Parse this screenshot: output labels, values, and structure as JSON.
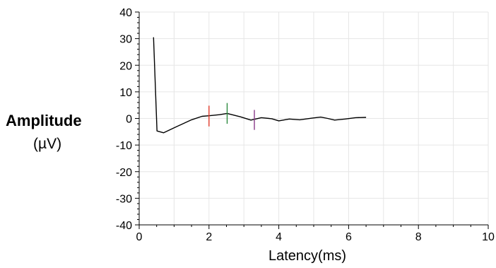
{
  "chart_data": {
    "type": "line",
    "title": "",
    "ylabel_title": "Amplitude",
    "ylabel_unit": "(µV)",
    "xlabel": "Latency(ms)",
    "xlim": [
      0,
      10
    ],
    "ylim": [
      -40,
      40
    ],
    "x_ticks": [
      "0",
      "2",
      "4",
      "6",
      "8",
      "10"
    ],
    "y_ticks": [
      "40",
      "30",
      "20",
      "10",
      "0",
      "-10",
      "-20",
      "-30",
      "-40"
    ],
    "grid": true,
    "series": [
      {
        "color": "#000000",
        "points": [
          [
            0.41,
            30.5
          ],
          [
            0.51,
            -4.7
          ],
          [
            0.7,
            -5.4
          ],
          [
            1.0,
            -3.5
          ],
          [
            1.5,
            -0.5
          ],
          [
            1.8,
            0.8
          ],
          [
            2.0,
            1.0
          ],
          [
            2.3,
            1.4
          ],
          [
            2.52,
            1.9
          ],
          [
            2.9,
            0.6
          ],
          [
            3.2,
            -0.6
          ],
          [
            3.5,
            0.3
          ],
          [
            3.8,
            -0.1
          ],
          [
            4.0,
            -0.9
          ],
          [
            4.3,
            -0.2
          ],
          [
            4.6,
            -0.5
          ],
          [
            4.95,
            0.1
          ],
          [
            5.2,
            0.5
          ],
          [
            5.4,
            0.0
          ],
          [
            5.6,
            -0.6
          ],
          [
            5.9,
            -0.2
          ],
          [
            6.2,
            0.3
          ],
          [
            6.5,
            0.4
          ]
        ]
      }
    ],
    "markers": [
      {
        "x": 2.0,
        "y_top": 4.8,
        "y_bottom": -3.0,
        "color": "#e03a2a"
      },
      {
        "x": 2.52,
        "y_top": 5.8,
        "y_bottom": -2.0,
        "color": "#2b8a3e"
      },
      {
        "x": 3.3,
        "y_top": 3.2,
        "y_bottom": -4.3,
        "color": "#8a3c8a"
      }
    ]
  }
}
